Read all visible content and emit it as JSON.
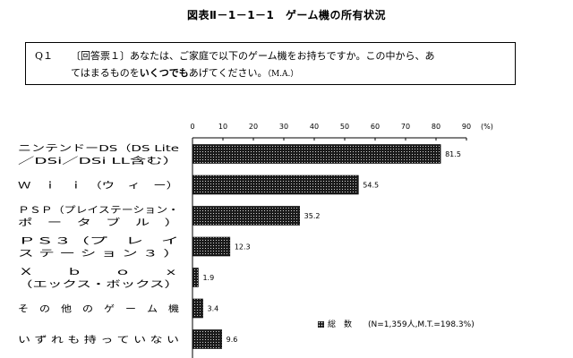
{
  "figure_title": "図表Ⅱ－1－1－1　ゲーム機の所有状況",
  "question": {
    "number": "Q１",
    "line1": "〔回答票１〕あなたは、ご家庭で以下のゲーム機をお持ちですか。この中から、あ",
    "line2_pre": "てはまるものを",
    "line2_bold": "いくつでも",
    "line2_post": "あげてください。",
    "ma": "（M.A.）"
  },
  "legend": {
    "series": "総　数",
    "sample": "(N=1,359人,M.T.=198.3%)"
  },
  "colors": {
    "bar_fill": "#1a1a1a",
    "bar_dots": "#ffffff"
  },
  "chart_data": {
    "type": "bar",
    "orientation": "horizontal",
    "x_unit": "(%)",
    "xlim": [
      0,
      90
    ],
    "x_ticks": [
      "0",
      "10",
      "20",
      "30",
      "40",
      "50",
      "60",
      "70",
      "80",
      "90"
    ],
    "categories": [
      [
        "ニンテンドーDS（DS Lite",
        "／DSi／DSi LL含む）"
      ],
      [
        "Ｗ　ｉ　ｉ　（ウ　ィ　ー）"
      ],
      [
        "ＰＳＰ（プレイステーション・",
        "ポ　ー　タ　ブ　ル　）"
      ],
      [
        "ＰＳ３（プ　レ　イ",
        "ス テ ー シ ョ ン ３ ）"
      ],
      [
        "Ｘ　　ｂ　　ｏ　　ｘ",
        "（エックス・ボックス）"
      ],
      [
        "そ　の　他　の　ゲ　ー　ム　機"
      ],
      [
        "い ず れ も 持 っ て い な い"
      ]
    ],
    "series": [
      {
        "name": "総　数",
        "values": [
          81.5,
          54.5,
          35.2,
          12.3,
          1.9,
          3.4,
          9.6
        ],
        "labels": [
          "81.5",
          "54.5",
          "35.2",
          "12.3",
          "1.9",
          "3.4",
          "9.6"
        ]
      }
    ],
    "legend_position": "bottom-right",
    "grid": false
  }
}
